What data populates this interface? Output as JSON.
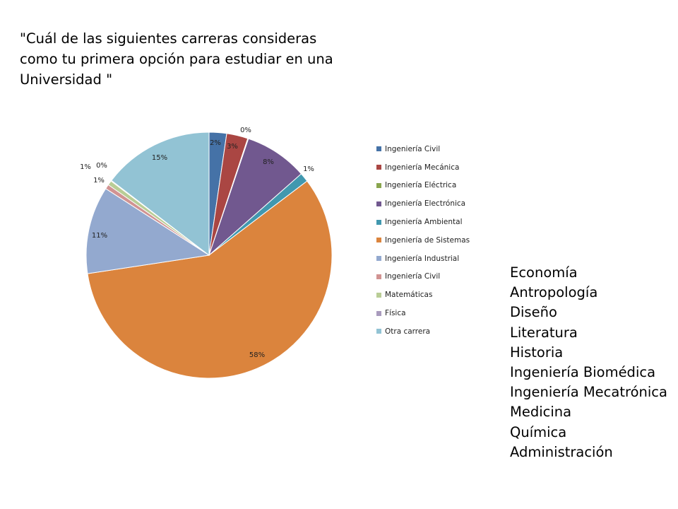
{
  "title": "\"Cuál de las siguientes carreras consideras\ncomo tu primera opción para estudiar en una\nUniversidad \"",
  "chart_data": {
    "type": "pie",
    "title": "\"Cuál de las siguientes carreras consideras como tu primera opción para estudiar en una Universidad \"",
    "legend_position": "right",
    "slices": [
      {
        "name": "Ingeniería Civil",
        "value": 2.3,
        "label": "2%",
        "color": "#4572a7"
      },
      {
        "name": "Ingeniería Mecánica",
        "value": 2.8,
        "label": "3%",
        "color": "#aa4643"
      },
      {
        "name": "Ingeniería Eléctrica",
        "value": 0.1,
        "label": "0%",
        "color": "#89a54e"
      },
      {
        "name": "Ingeniería Electrónica",
        "value": 8.3,
        "label": "8%",
        "color": "#71588f"
      },
      {
        "name": "Ingeniería Ambiental",
        "value": 1.2,
        "label": "1%",
        "color": "#4198af"
      },
      {
        "name": "Ingeniería de Sistemas",
        "value": 57.9,
        "label": "58%",
        "color": "#db843d"
      },
      {
        "name": "Ingeniería Industrial",
        "value": 11.5,
        "label": "11%",
        "color": "#93a9cf"
      },
      {
        "name": "Ingeniería Civil",
        "value": 0.6,
        "label": "1%",
        "color": "#d19392"
      },
      {
        "name": "Matemáticas",
        "value": 0.6,
        "label": "1%",
        "color": "#b9cd96"
      },
      {
        "name": "Física",
        "value": 0.1,
        "label": "0%",
        "color": "#a99bbd"
      },
      {
        "name": "Otra carrera",
        "value": 14.6,
        "label": "15%",
        "color": "#92c3d4"
      }
    ]
  },
  "other_careers": [
    "Economía",
    "Antropología",
    "Diseño",
    "Literatura",
    "Historia",
    "Ingeniería Biomédica",
    "Ingeniería Mecatrónica",
    "Medicina",
    "Química",
    "Administración"
  ]
}
